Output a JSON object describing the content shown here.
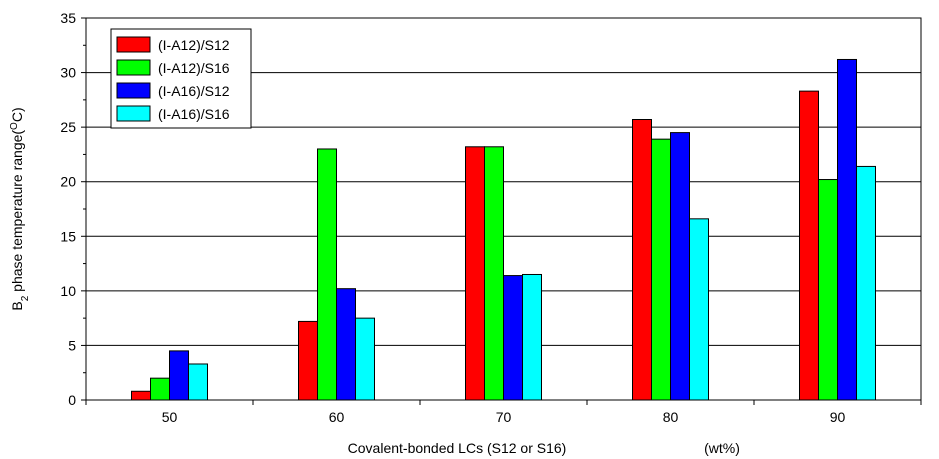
{
  "chart_data": {
    "type": "bar",
    "categories": [
      "50",
      "60",
      "70",
      "80",
      "90"
    ],
    "series": [
      {
        "name": "(I-A12)/S12",
        "color": "#ff0000",
        "values": [
          0.8,
          7.2,
          23.2,
          25.7,
          28.3
        ]
      },
      {
        "name": "(I-A12)/S16",
        "color": "#00ff00",
        "values": [
          2.0,
          23.0,
          23.2,
          23.9,
          20.2
        ]
      },
      {
        "name": "(I-A16)/S12",
        "color": "#0000ff",
        "values": [
          4.5,
          10.2,
          11.4,
          24.5,
          31.2
        ]
      },
      {
        "name": "(I-A16)/S16",
        "color": "#00ffff",
        "values": [
          3.3,
          7.5,
          11.5,
          16.6,
          21.4
        ]
      }
    ],
    "ylim": [
      0,
      35
    ],
    "yticks": [
      "0",
      "5",
      "10",
      "15",
      "20",
      "25",
      "30",
      "35"
    ],
    "xlabel": "Covalent-bonded LCs (S12 or S16)",
    "xlabel_unit": "(wt%)",
    "ylabel": {
      "prefix": "B",
      "sub": "2",
      "middle": " phase temperature range(",
      "sup": "O",
      "suffix": "C)"
    },
    "grid": "horizontal",
    "legend_position": "top-left"
  }
}
